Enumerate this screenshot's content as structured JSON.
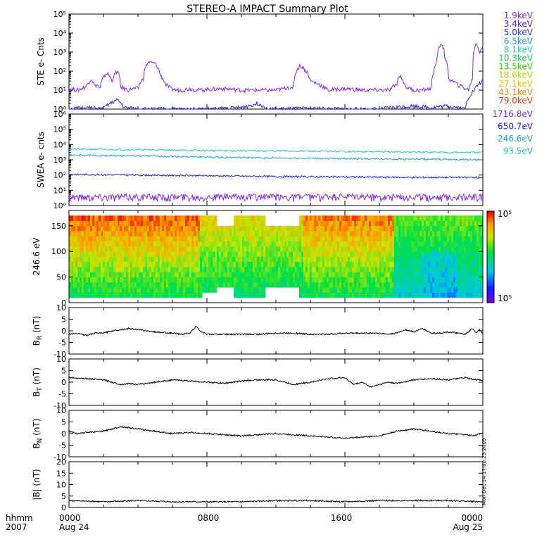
{
  "title": "STEREO-A IMPACT Summary Plot",
  "footer": {
    "left_top": "hhmm",
    "left_bottom": "2007",
    "time_ticks": [
      "0000",
      "0800",
      "1600",
      "0000"
    ],
    "date_labels": [
      "Aug 24",
      "Aug 25"
    ]
  },
  "side_stamp": "Mon Dec 14 17:00:23 2009",
  "chart_data": [
    {
      "panel": "ste",
      "type": "line",
      "ylabel": "STE e- Cnts",
      "yscale": "log",
      "ylim": [
        1,
        100000
      ],
      "yticks": [
        "10⁰",
        "10¹",
        "10²",
        "10³",
        "10⁴",
        "10⁵"
      ],
      "xlim_hours": [
        0,
        24
      ],
      "legend": [
        {
          "label": "1.9keV",
          "color": "#8a2be2"
        },
        {
          "label": "3.4keV",
          "color": "#5a22d8"
        },
        {
          "label": "5.0keV",
          "color": "#1e3cff"
        },
        {
          "label": "6.5keV",
          "color": "#1fa3d6"
        },
        {
          "label": "8.1keV",
          "color": "#20c8c8"
        },
        {
          "label": "10.3keV",
          "color": "#22cc55"
        },
        {
          "label": "13.5keV",
          "color": "#33cc00"
        },
        {
          "label": "18.6keV",
          "color": "#b8d400"
        },
        {
          "label": "27.1keV",
          "color": "#f0c000"
        },
        {
          "label": "43.1keV",
          "color": "#ff8a00"
        },
        {
          "label": "79.0keV",
          "color": "#e23a1a"
        }
      ],
      "series": [
        {
          "label_ref": "1.9keV",
          "color": "#8a2be2",
          "x": [
            0,
            0.5,
            1.0,
            1.3,
            1.5,
            1.6,
            1.8,
            2.2,
            2.5,
            2.8,
            3.0,
            3.2,
            3.4,
            3.7,
            4.0,
            4.3,
            4.6,
            5.0,
            5.3,
            5.6,
            5.9,
            6.2,
            6.5,
            7.0,
            7.5,
            8.0,
            9.0,
            10.0,
            11.0,
            12.0,
            12.5,
            12.7,
            13.0,
            13.4,
            14.0,
            15.0,
            16.0,
            17.0,
            18.0,
            18.6,
            19.0,
            19.2,
            19.5,
            20.0,
            20.5,
            21.0,
            21.3,
            21.6,
            21.8,
            22.0,
            22.5,
            23.0,
            23.2,
            23.4,
            23.6,
            23.8,
            24.0
          ],
          "y": [
            12,
            10,
            15,
            40,
            15,
            20,
            12,
            80,
            30,
            100,
            15,
            12,
            10,
            12,
            12,
            40,
            300,
            250,
            60,
            20,
            12,
            10,
            10,
            12,
            10,
            11,
            12,
            10,
            10,
            10,
            12,
            15,
            10,
            200,
            30,
            10,
            12,
            10,
            10,
            10,
            20,
            60,
            15,
            10,
            10,
            12,
            200,
            3000,
            500,
            40,
            20,
            12,
            10,
            40,
            3000,
            1000,
            2000
          ]
        },
        {
          "label_ref": "3.4keV",
          "color": "#2a2ae0",
          "x": [
            0,
            1.0,
            2.0,
            2.8,
            3.2,
            4.0,
            6.0,
            8.0,
            10.0,
            11.0,
            11.5,
            12.0,
            14.0,
            16.0,
            18.0,
            20.0,
            21.0,
            22.0,
            23.0,
            23.5,
            24.0
          ],
          "y": [
            1,
            1.2,
            1,
            3,
            1.2,
            1,
            1,
            1,
            1.2,
            2,
            1,
            1,
            1.1,
            1,
            1,
            1.5,
            1.2,
            1.5,
            1,
            10,
            30
          ]
        }
      ]
    },
    {
      "panel": "swea",
      "type": "line",
      "ylabel": "SWEA e- cnts",
      "yscale": "log",
      "ylim": [
        1,
        1000000
      ],
      "yticks": [
        "10⁰",
        "10¹",
        "10²",
        "10³",
        "10⁴",
        "10⁵",
        "10⁶"
      ],
      "xlim_hours": [
        0,
        24
      ],
      "legend": [
        {
          "label": "1716.8eV",
          "color": "#8a2be2"
        },
        {
          "label": "650.7eV",
          "color": "#1e22c8"
        },
        {
          "label": "246.6eV",
          "color": "#1fa3d6"
        },
        {
          "label": "93.5eV",
          "color": "#20c8c8"
        }
      ],
      "series": [
        {
          "label_ref": "93.5eV",
          "color": "#20c8c8",
          "x": [
            0,
            4,
            8,
            12,
            16,
            20,
            24
          ],
          "y": [
            5000,
            4600,
            4000,
            3800,
            3500,
            3200,
            3000
          ]
        },
        {
          "label_ref": "246.6eV",
          "color": "#1fa3d6",
          "x": [
            0,
            4,
            8,
            12,
            16,
            20,
            24
          ],
          "y": [
            2000,
            1800,
            1500,
            1300,
            1200,
            1100,
            1000
          ]
        },
        {
          "label_ref": "650.7eV",
          "color": "#1e22c8",
          "x": [
            0,
            4,
            8,
            12,
            16,
            20,
            24
          ],
          "y": [
            110,
            100,
            90,
            80,
            75,
            70,
            70
          ]
        },
        {
          "label_ref": "1716.8eV",
          "color": "#8a2be2",
          "x": [
            0,
            4,
            8,
            12,
            16,
            20,
            24
          ],
          "y": [
            3,
            3,
            3,
            3,
            3,
            3,
            3
          ]
        }
      ]
    },
    {
      "panel": "pitch",
      "type": "heatmap",
      "ylabel": "246.6 eV",
      "ylim": [
        0,
        180
      ],
      "yticks": [
        0,
        50,
        100,
        150
      ],
      "xlim_hours": [
        0,
        24
      ],
      "colorbar": {
        "top_label": "10⁵",
        "bottom_label": "10⁵"
      }
    },
    {
      "panel": "br",
      "type": "line",
      "ylabel": "B",
      "ysub": "R",
      "yunit": " (nT)",
      "ylim": [
        -10,
        10
      ],
      "yticks": [
        -10,
        -5,
        0,
        5,
        10
      ],
      "xlim_hours": [
        0,
        24
      ],
      "x": [
        0,
        0.5,
        1.0,
        1.5,
        2.0,
        2.5,
        3.0,
        3.5,
        4.0,
        5.0,
        6.0,
        6.5,
        7.0,
        7.4,
        7.6,
        8.0,
        9.0,
        10.0,
        11.0,
        12.0,
        13.0,
        14.0,
        15.0,
        16.0,
        17.0,
        18.0,
        18.5,
        19.0,
        19.5,
        20.0,
        20.5,
        21.0,
        21.5,
        22.0,
        22.5,
        23.0,
        23.4,
        23.6,
        23.8,
        24.0
      ],
      "y": [
        -1.5,
        -1,
        -2,
        -1,
        -1,
        0,
        0.5,
        1,
        0.5,
        -0.5,
        -1,
        -1.5,
        -1,
        2,
        0,
        -1.5,
        -1.5,
        -1.5,
        -1.5,
        -1,
        -1,
        -1.5,
        -1.5,
        -1,
        -1,
        -1,
        -1.5,
        -1,
        0.5,
        -0.5,
        1,
        -1,
        -1,
        -0.5,
        -1,
        -1.5,
        1,
        -1,
        0.5,
        -1
      ]
    },
    {
      "panel": "bt",
      "type": "line",
      "ylabel": "B",
      "ysub": "T",
      "yunit": " (nT)",
      "ylim": [
        -10,
        10
      ],
      "yticks": [
        -10,
        -5,
        0,
        5,
        10
      ],
      "xlim_hours": [
        0,
        24
      ],
      "x": [
        0,
        1.0,
        2.0,
        2.5,
        3.0,
        3.5,
        4.0,
        5.0,
        6.0,
        7.0,
        8.0,
        9.0,
        10.0,
        11.0,
        12.0,
        12.5,
        13.0,
        14.0,
        15.0,
        16.0,
        16.5,
        17.0,
        17.5,
        18.0,
        18.5,
        19.0,
        20.0,
        21.0,
        22.0,
        23.0,
        23.5,
        24.0
      ],
      "y": [
        2,
        1.5,
        1,
        0,
        -1,
        -0.5,
        -1,
        0,
        1,
        0.5,
        0,
        -0.5,
        0.5,
        1,
        1,
        0,
        -1,
        0,
        1.5,
        2,
        -1,
        0,
        -2,
        -1,
        0,
        -0.5,
        1,
        1.5,
        1,
        2,
        1,
        1
      ]
    },
    {
      "panel": "bn",
      "type": "line",
      "ylabel": "B",
      "ysub": "N",
      "yunit": " (nT)",
      "ylim": [
        -10,
        10
      ],
      "yticks": [
        -10,
        -5,
        0,
        5,
        10
      ],
      "xlim_hours": [
        0,
        24
      ],
      "x": [
        0,
        0.5,
        1.0,
        2.0,
        3.0,
        3.5,
        4.0,
        5.0,
        6.0,
        7.0,
        8.0,
        9.0,
        10.0,
        11.0,
        12.0,
        13.0,
        14.0,
        15.0,
        16.0,
        17.0,
        18.0,
        18.5,
        19.0,
        20.0,
        21.0,
        22.0,
        23.0,
        23.5,
        24.0
      ],
      "y": [
        1,
        0,
        0.5,
        1,
        3,
        2.5,
        2,
        1,
        0,
        0.5,
        0,
        -0.5,
        -1,
        -0.5,
        0,
        -0.5,
        -1,
        -1.5,
        -2,
        -1.5,
        -1,
        0,
        1,
        2,
        1,
        0,
        -0.5,
        -1,
        0.5
      ]
    },
    {
      "panel": "bmag",
      "type": "line",
      "ylabel": "|B| (nT)",
      "ylim": [
        0,
        20
      ],
      "yticks": [
        0,
        5,
        10,
        15,
        20
      ],
      "xlim_hours": [
        0,
        24
      ],
      "x": [
        0,
        2,
        4,
        6,
        8,
        10,
        12,
        14,
        16,
        18,
        20,
        22,
        24
      ],
      "y": [
        3,
        2.5,
        3,
        2.5,
        2.5,
        2.5,
        3,
        3,
        2.5,
        3,
        3,
        3,
        2.5
      ]
    }
  ]
}
